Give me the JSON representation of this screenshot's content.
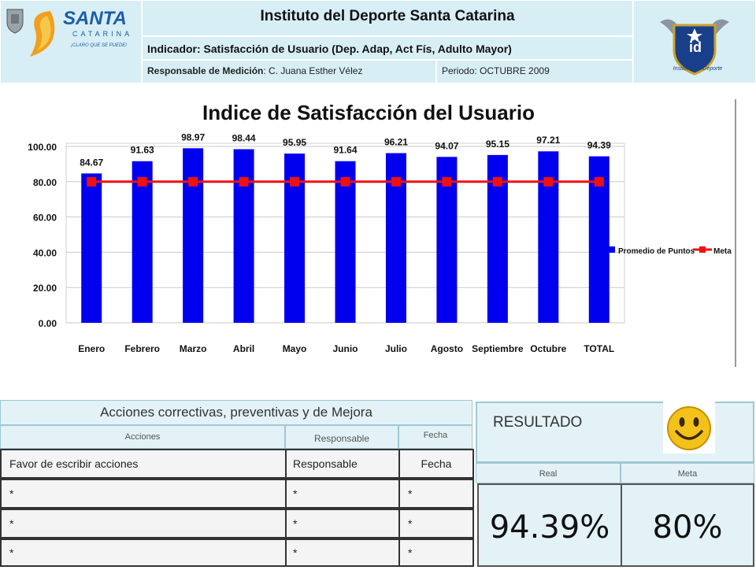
{
  "header": {
    "org_title": "Instituto del Deporte Santa Catarina",
    "indicator_label": "Indicador: Satisfacción de Usuario (Dep. Adap, Act Fís, Adulto Mayor)",
    "responsable_key": "Responsable de Medición",
    "responsable_value": "C. Juana Esther Vélez",
    "periodo_key": "Periodo",
    "periodo_value": "OCTUBRE 2009",
    "logo_left_text": "SANTA",
    "logo_left_sub": "CATARINA",
    "logo_left_slogan": "¡CLARO QUE SE PUEDE!",
    "logo_right_text": "id",
    "logo_right_caption": "Instituto del Deporte"
  },
  "chart_data": {
    "type": "bar",
    "title": "Indice de Satisfacción del Usuario",
    "categories": [
      "Enero",
      "Febrero",
      "Marzo",
      "Abril",
      "Mayo",
      "Junio",
      "Julio",
      "Agosto",
      "Septiembre",
      "Octubre",
      "TOTAL"
    ],
    "series": [
      {
        "name": "Promedio de Puntos",
        "type": "bar",
        "color": "#0000ee",
        "values": [
          84.67,
          91.63,
          98.97,
          98.44,
          95.95,
          91.64,
          96.21,
          94.07,
          95.15,
          97.21,
          94.39
        ]
      },
      {
        "name": "Meta",
        "type": "line",
        "color": "#ee1111",
        "values": [
          80,
          80,
          80,
          80,
          80,
          80,
          80,
          80,
          80,
          80,
          80
        ]
      }
    ],
    "yticks": [
      "0.00",
      "20.00",
      "40.00",
      "60.00",
      "80.00",
      "100.00"
    ],
    "ylim": [
      0,
      100
    ],
    "legend_position": "right",
    "grid": true
  },
  "acciones": {
    "title": "Acciones correctivas, preventivas y de Mejora",
    "col_acciones": "Acciones",
    "col_responsable": "Responsable",
    "col_fecha": "Fecha",
    "row1": {
      "accion": "Favor de escribir acciones",
      "responsable": "Responsable",
      "fecha": "Fecha"
    },
    "rows": [
      {
        "accion": "*",
        "responsable": "*",
        "fecha": "*"
      },
      {
        "accion": "*",
        "responsable": "*",
        "fecha": "*"
      },
      {
        "accion": "*",
        "responsable": "*",
        "fecha": "*"
      }
    ]
  },
  "resultado": {
    "title": "RESULTADO",
    "real_label": "Real",
    "meta_label": "Meta",
    "real_value": "94.39%",
    "meta_value": "80%"
  },
  "colors": {
    "cell_bg": "#d7eef5",
    "bar": "#0000ee",
    "meta": "#ee1111",
    "smiley": "#f3c21a"
  }
}
